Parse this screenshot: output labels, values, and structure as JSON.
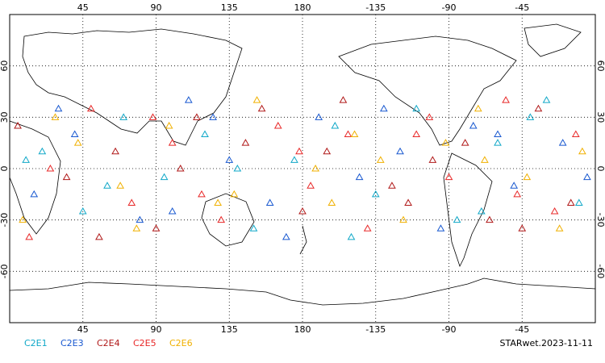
{
  "chart_data": {
    "type": "scatter",
    "xlim": [
      0,
      360
    ],
    "ylim": [
      -90,
      90
    ],
    "xticks": [
      45,
      90,
      135,
      180,
      {
        "value": 225,
        "label": "-135"
      },
      {
        "value": 270,
        "label": "-90"
      },
      {
        "value": 315,
        "label": "-45"
      }
    ],
    "yticks": [
      60,
      30,
      0,
      -30,
      -60
    ],
    "grid": true,
    "annotation": "STARwet.2023-11-11",
    "series": [
      {
        "name": "C2E1",
        "color": "#10a8c8",
        "x": [
          20,
          45,
          70,
          95,
          120,
          150,
          175,
          200,
          225,
          250,
          275,
          300,
          330,
          350,
          60,
          140,
          210,
          290,
          320,
          10
        ],
        "y": [
          10,
          -25,
          30,
          -5,
          20,
          -35,
          5,
          25,
          -15,
          35,
          -30,
          15,
          40,
          -20,
          -10,
          0,
          -40,
          -25,
          30,
          5
        ]
      },
      {
        "name": "C2E3",
        "color": "#1858d0",
        "x": [
          15,
          40,
          80,
          110,
          135,
          160,
          190,
          215,
          240,
          265,
          285,
          310,
          340,
          30,
          100,
          170,
          230,
          300,
          355,
          125
        ],
        "y": [
          -15,
          20,
          -30,
          40,
          5,
          -20,
          30,
          -5,
          10,
          -35,
          25,
          -10,
          15,
          35,
          -25,
          -40,
          35,
          20,
          -5,
          30
        ]
      },
      {
        "name": "C2E4",
        "color": "#b01818",
        "x": [
          5,
          35,
          65,
          90,
          115,
          145,
          180,
          205,
          235,
          260,
          295,
          325,
          345,
          55,
          105,
          155,
          195,
          245,
          280,
          315
        ],
        "y": [
          25,
          -5,
          10,
          -35,
          30,
          15,
          -25,
          40,
          -10,
          5,
          -30,
          35,
          -20,
          -40,
          0,
          35,
          10,
          -20,
          15,
          -35
        ]
      },
      {
        "name": "C2E5",
        "color": "#e82828",
        "x": [
          25,
          50,
          75,
          100,
          130,
          165,
          185,
          220,
          250,
          270,
          305,
          335,
          12,
          88,
          118,
          178,
          208,
          258,
          312,
          348
        ],
        "y": [
          0,
          35,
          -20,
          15,
          -30,
          25,
          -10,
          -35,
          20,
          -5,
          40,
          -25,
          -40,
          30,
          -15,
          10,
          20,
          30,
          -15,
          20
        ]
      },
      {
        "name": "C2E6",
        "color": "#f0b000",
        "x": [
          8,
          42,
          68,
          98,
          128,
          152,
          188,
          212,
          242,
          268,
          292,
          318,
          352,
          28,
          78,
          138,
          198,
          228,
          288,
          338
        ],
        "y": [
          -30,
          15,
          -10,
          25,
          -20,
          40,
          0,
          20,
          -30,
          15,
          5,
          -5,
          10,
          30,
          -35,
          -15,
          -20,
          5,
          35,
          -35
        ]
      }
    ]
  }
}
